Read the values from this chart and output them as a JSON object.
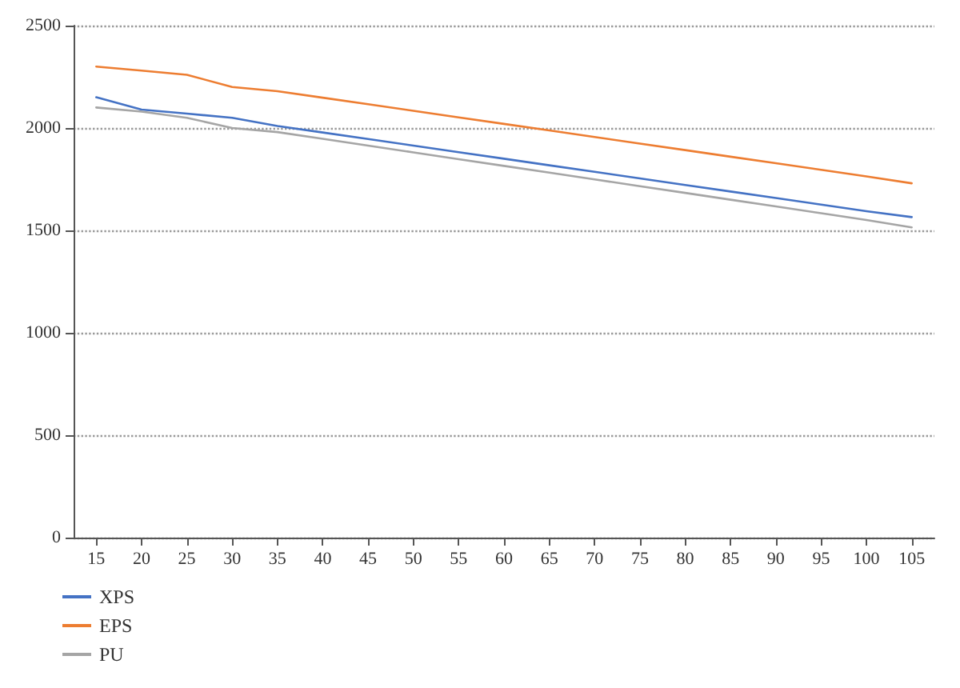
{
  "chart_data": {
    "type": "line",
    "categories": [
      "15",
      "20",
      "25",
      "30",
      "35",
      "40",
      "45",
      "50",
      "55",
      "60",
      "65",
      "70",
      "75",
      "80",
      "85",
      "90",
      "95",
      "100",
      "105"
    ],
    "series": [
      {
        "name": "XPS",
        "color": "#4472c4",
        "values": [
          2150,
          2090,
          2070,
          2050,
          2010,
          1978,
          1946,
          1914,
          1882,
          1850,
          1818,
          1786,
          1754,
          1722,
          1690,
          1658,
          1626,
          1594,
          1565
        ]
      },
      {
        "name": "EPS",
        "color": "#ed7d31",
        "values": [
          2300,
          2280,
          2260,
          2200,
          2180,
          2148,
          2116,
          2084,
          2052,
          2020,
          1988,
          1956,
          1924,
          1892,
          1860,
          1828,
          1796,
          1764,
          1730
        ]
      },
      {
        "name": "PU",
        "color": "#a5a5a5",
        "values": [
          2100,
          2080,
          2050,
          2000,
          1980,
          1947,
          1914,
          1881,
          1848,
          1815,
          1782,
          1749,
          1716,
          1683,
          1650,
          1617,
          1584,
          1551,
          1515
        ]
      }
    ],
    "ylim": [
      0,
      2500
    ],
    "yticks": [
      0,
      500,
      1000,
      1500,
      2000,
      2500
    ],
    "grid": "y",
    "legend": "bottom left",
    "marker": "none",
    "line_style": "solid"
  }
}
